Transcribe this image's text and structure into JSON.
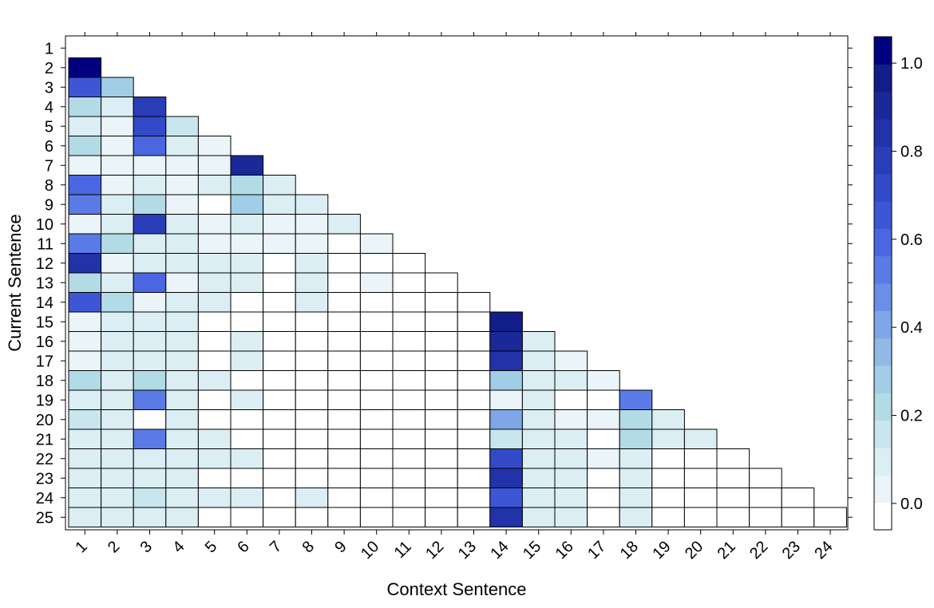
{
  "chart_data": {
    "type": "heatmap",
    "xlabel": "Context Sentence",
    "ylabel": "Current Sentence",
    "x_categories": [
      "1",
      "2",
      "3",
      "4",
      "5",
      "6",
      "7",
      "8",
      "9",
      "10",
      "11",
      "12",
      "13",
      "14",
      "15",
      "16",
      "17",
      "18",
      "19",
      "20",
      "21",
      "22",
      "23",
      "24"
    ],
    "y_categories": [
      "1",
      "2",
      "3",
      "4",
      "5",
      "6",
      "7",
      "8",
      "9",
      "10",
      "11",
      "12",
      "13",
      "14",
      "15",
      "16",
      "17",
      "18",
      "19",
      "20",
      "21",
      "22",
      "23",
      "24",
      "25"
    ],
    "layout": "lower-triangular (current sentence attends to preceding context sentences)",
    "colorbar": {
      "range": [
        -0.06,
        1.06
      ],
      "ticks": [
        0.0,
        0.2,
        0.4,
        0.6,
        0.8,
        1.0
      ],
      "tick_labels": [
        "0.0",
        "0.2",
        "0.4",
        "0.6",
        "0.8",
        "1.0"
      ],
      "low_color": "#ffffff",
      "high_color": "#000080"
    },
    "values": [
      [],
      [
        1.05
      ],
      [
        0.68,
        0.3
      ],
      [
        0.24,
        0.07,
        0.78
      ],
      [
        0.12,
        0.06,
        0.7,
        0.18
      ],
      [
        0.24,
        0.06,
        0.62,
        0.07,
        0.04
      ],
      [
        0.05,
        0.05,
        0.05,
        0.06,
        0.03,
        0.92
      ],
      [
        0.62,
        0.06,
        0.07,
        0.06,
        0.07,
        0.24,
        0.07
      ],
      [
        0.54,
        0.07,
        0.22,
        0.06,
        0.0,
        0.26,
        0.08,
        0.08
      ],
      [
        0.05,
        0.07,
        0.8,
        0.07,
        0.05,
        0.12,
        0.06,
        0.06,
        0.07
      ],
      [
        0.54,
        0.2,
        0.12,
        0.07,
        0.06,
        0.06,
        0.06,
        0.06,
        0.0,
        0.04
      ],
      [
        0.82,
        0.06,
        0.12,
        0.07,
        0.07,
        0.07,
        0.0,
        0.07,
        0.0,
        0.0,
        0.0
      ],
      [
        0.24,
        0.07,
        0.62,
        0.06,
        0.07,
        0.08,
        0.0,
        0.07,
        0.0,
        0.06,
        0.0,
        0.0
      ],
      [
        0.63,
        0.24,
        0.05,
        0.12,
        0.07,
        0.0,
        0.0,
        0.07,
        0.0,
        0.0,
        0.0,
        0.0,
        0.0
      ],
      [
        0.05,
        0.07,
        0.07,
        0.08,
        0.0,
        0.0,
        0.0,
        0.0,
        0.0,
        0.0,
        0.0,
        0.0,
        0.0,
        0.94
      ],
      [
        0.05,
        0.07,
        0.08,
        0.08,
        0.0,
        0.07,
        0.0,
        0.0,
        0.0,
        0.0,
        0.0,
        0.0,
        0.0,
        0.93,
        0.1
      ],
      [
        0.05,
        0.07,
        0.12,
        0.08,
        0.0,
        0.07,
        0.0,
        0.0,
        0.0,
        0.0,
        0.0,
        0.0,
        0.0,
        0.85,
        0.07,
        0.06
      ],
      [
        0.2,
        0.12,
        0.24,
        0.12,
        0.07,
        0.0,
        0.0,
        0.0,
        0.0,
        0.0,
        0.0,
        0.0,
        0.0,
        0.27,
        0.08,
        0.07,
        0.06
      ],
      [
        0.07,
        0.07,
        0.5,
        0.08,
        0.0,
        0.07,
        0.0,
        0.0,
        0.0,
        0.0,
        0.0,
        0.0,
        0.0,
        0.06,
        0.07,
        0.0,
        0.0,
        0.52
      ],
      [
        0.18,
        0.12,
        0.0,
        0.07,
        0.0,
        0.0,
        0.0,
        0.0,
        0.0,
        0.0,
        0.0,
        0.0,
        0.0,
        0.38,
        0.08,
        0.06,
        0.06,
        0.22,
        0.07
      ],
      [
        0.12,
        0.07,
        0.52,
        0.07,
        0.07,
        0.0,
        0.0,
        0.0,
        0.0,
        0.0,
        0.0,
        0.0,
        0.0,
        0.17,
        0.08,
        0.07,
        0.0,
        0.19,
        0.07,
        0.07
      ],
      [
        0.12,
        0.07,
        0.07,
        0.07,
        0.07,
        0.07,
        0.0,
        0.0,
        0.0,
        0.0,
        0.0,
        0.0,
        0.0,
        0.72,
        0.08,
        0.07,
        0.06,
        0.07,
        0.0,
        0.0,
        0.0
      ],
      [
        0.12,
        0.07,
        0.07,
        0.07,
        0.0,
        0.0,
        0.0,
        0.0,
        0.0,
        0.0,
        0.0,
        0.0,
        0.0,
        0.85,
        0.08,
        0.07,
        0.0,
        0.07,
        0.0,
        0.0,
        0.0,
        0.0
      ],
      [
        0.07,
        0.07,
        0.17,
        0.07,
        0.07,
        0.07,
        0.0,
        0.07,
        0.0,
        0.0,
        0.0,
        0.0,
        0.0,
        0.64,
        0.08,
        0.07,
        0.0,
        0.12,
        0.0,
        0.0,
        0.0,
        0.0,
        0.0
      ],
      [
        0.12,
        0.07,
        0.07,
        0.07,
        0.0,
        0.0,
        0.0,
        0.0,
        0.0,
        0.0,
        0.0,
        0.0,
        0.0,
        0.85,
        0.08,
        0.07,
        0.0,
        0.07,
        0.0,
        0.0,
        0.0,
        0.0,
        0.0,
        0.0
      ]
    ]
  }
}
